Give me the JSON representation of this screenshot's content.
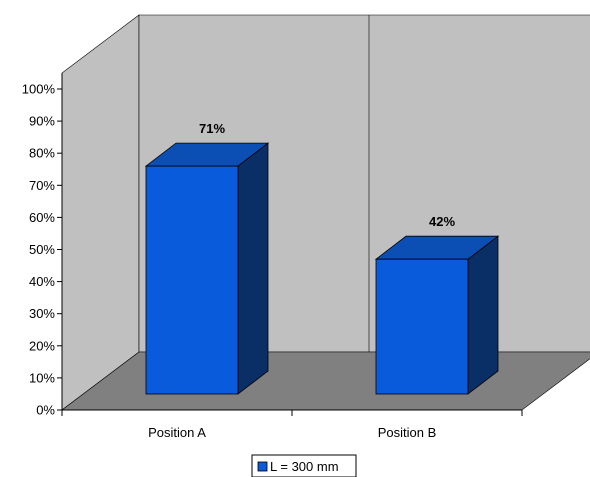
{
  "chart_data": {
    "type": "bar",
    "categories": [
      "Position A",
      "Position B"
    ],
    "series": [
      {
        "name": "L = 300 mm",
        "values": [
          71,
          42
        ]
      }
    ],
    "data_labels": [
      "71%",
      "42%"
    ],
    "y_tick_labels": [
      "0%",
      "10%",
      "20%",
      "30%",
      "40%",
      "50%",
      "60%",
      "70%",
      "80%",
      "90%",
      "100%"
    ],
    "ylim": [
      0,
      100
    ],
    "y_unit": "%",
    "legend_position": "bottom",
    "style": "3d",
    "colors": {
      "bar_front": "#0A5BDC",
      "bar_top": "#0B4FB5",
      "bar_side": "#0A2E66",
      "back_wall": "#C0C0C0",
      "side_wall": "#C0C0C0",
      "floor": "#808080"
    }
  }
}
